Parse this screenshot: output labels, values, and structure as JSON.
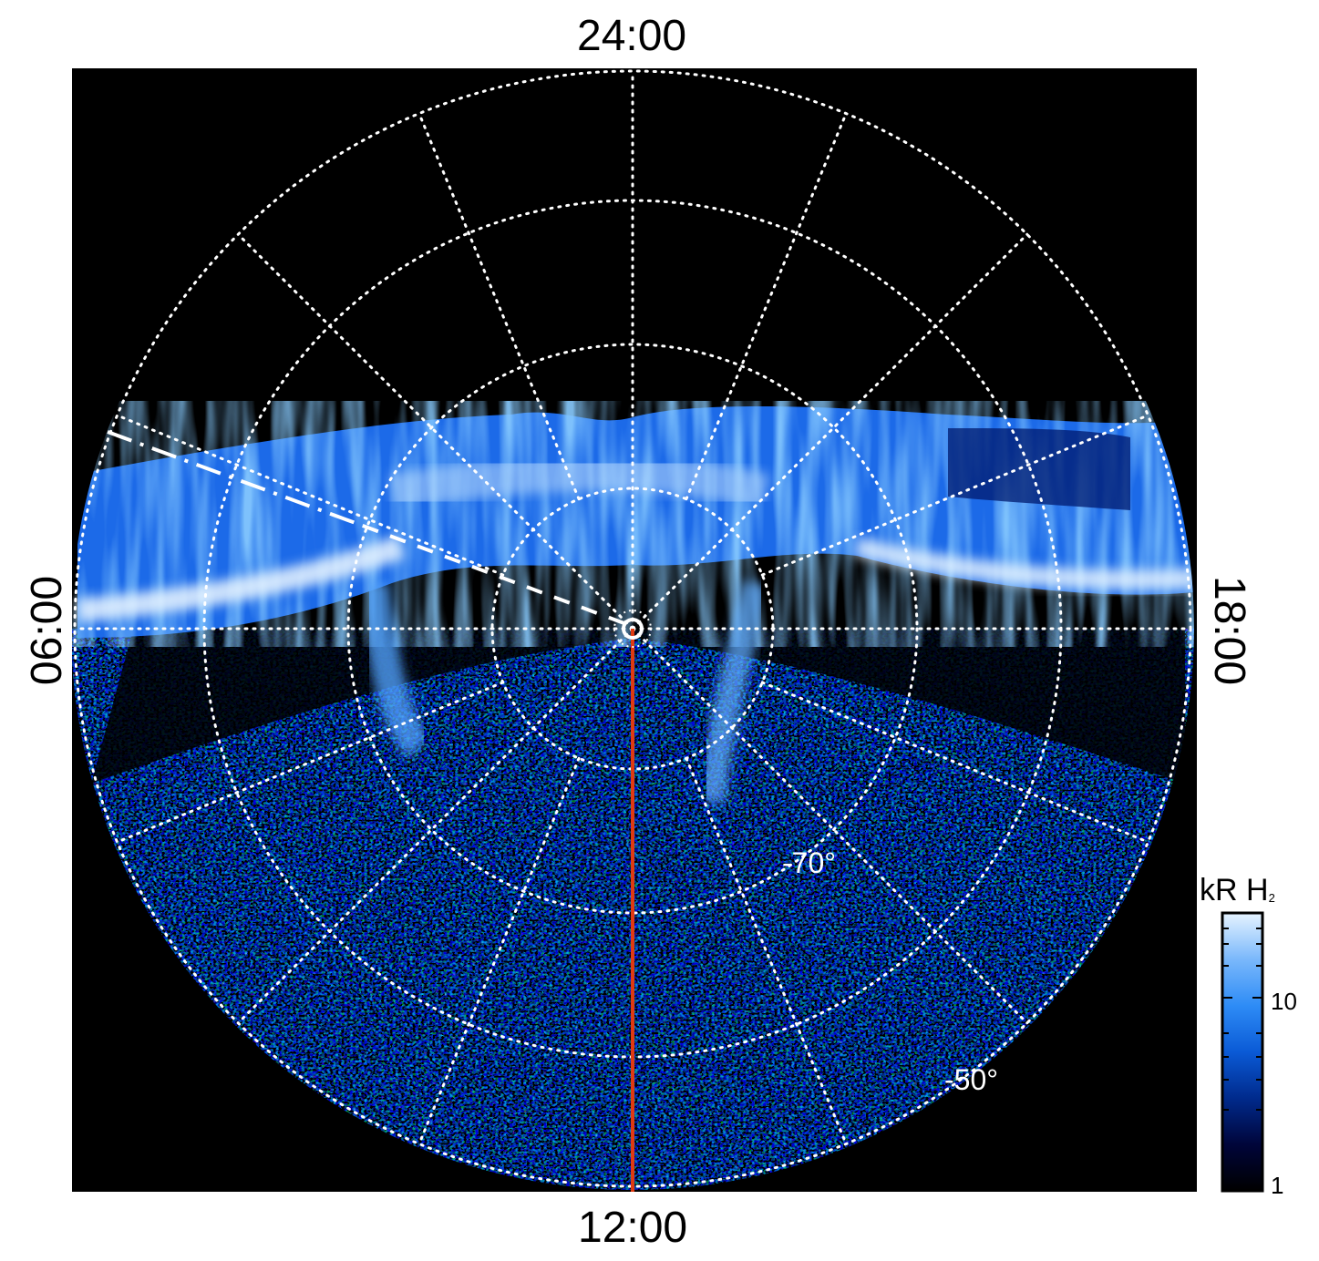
{
  "local_time_labels": {
    "top": "24:00",
    "bottom": "12:00",
    "left": "06:00",
    "right": "18:00"
  },
  "latitude_labels": [
    {
      "text": "-70°",
      "value": -70
    },
    {
      "text": "-50°",
      "value": -50
    }
  ],
  "colorbar": {
    "title": "kR H",
    "subscript": "2",
    "ticks": [
      {
        "text": "10",
        "value": 10
      },
      {
        "text": "1",
        "value": 1
      }
    ],
    "colors": [
      "#000000",
      "#00053a",
      "#002a8c",
      "#0a5ad6",
      "#2e8cf6",
      "#7ab8fb",
      "#e6f3ff"
    ]
  },
  "colors": {
    "background": "#000000",
    "grid": "#ffffff",
    "meridian": "#e03a12"
  }
}
